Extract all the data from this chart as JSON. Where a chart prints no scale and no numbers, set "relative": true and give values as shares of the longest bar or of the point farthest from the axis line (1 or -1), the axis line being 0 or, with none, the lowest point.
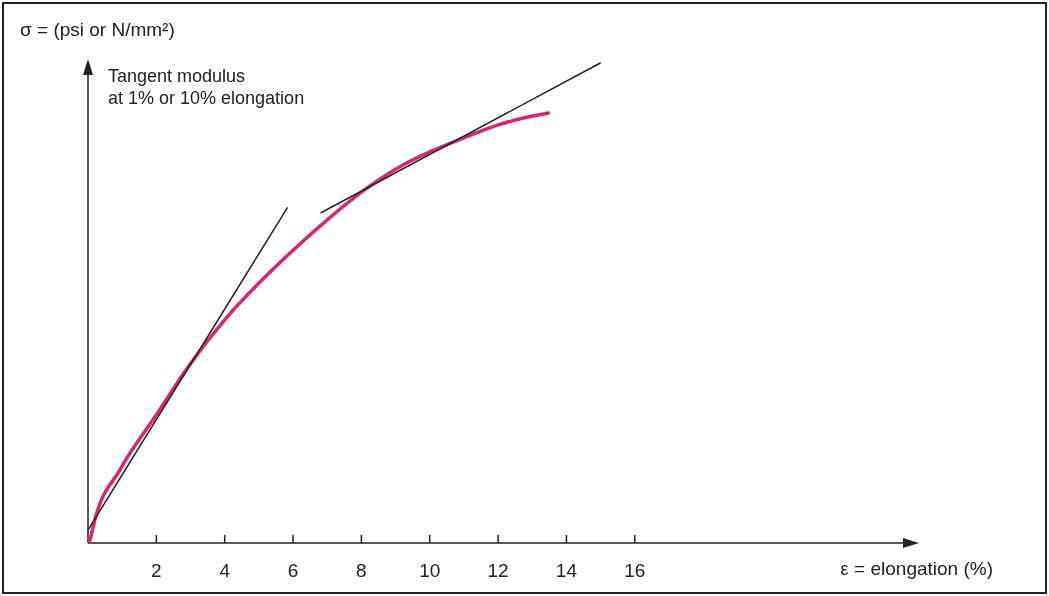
{
  "chart_data": {
    "type": "line",
    "relative": true,
    "xlabel": "ε = elongation (%)",
    "ylabel": "σ = (psi or N/mm²)",
    "annotations": [
      "Tangent modulus\nat 1% or 10% elongation"
    ],
    "xlim": [
      0,
      24.2
    ],
    "xticks": [
      2,
      4,
      6,
      8,
      10,
      12,
      14,
      16
    ],
    "grid": false,
    "marker": "none",
    "line_style": "solid",
    "tick_labels": "x",
    "series": [
      {
        "color": "#d9276f",
        "x": [
          0.06,
          0.2,
          0.93,
          2,
          2.97,
          4,
          5.01,
          6,
          7.06,
          8,
          9.1,
          10,
          11,
          12,
          12.9,
          13.47
        ],
        "values": [
          0.006,
          0.048,
          0.152,
          0.267,
          0.371,
          0.465,
          0.542,
          0.61,
          0.677,
          0.731,
          0.783,
          0.815,
          0.844,
          0.871,
          0.888,
          0.896
        ]
      },
      {
        "color": "#222222",
        "x": [
          0,
          5.83
        ],
        "values": [
          0.027,
          0.698
        ]
      },
      {
        "color": "#222222",
        "x": [
          6.82,
          14.99
        ],
        "values": [
          0.688,
          1.0
        ]
      }
    ]
  }
}
